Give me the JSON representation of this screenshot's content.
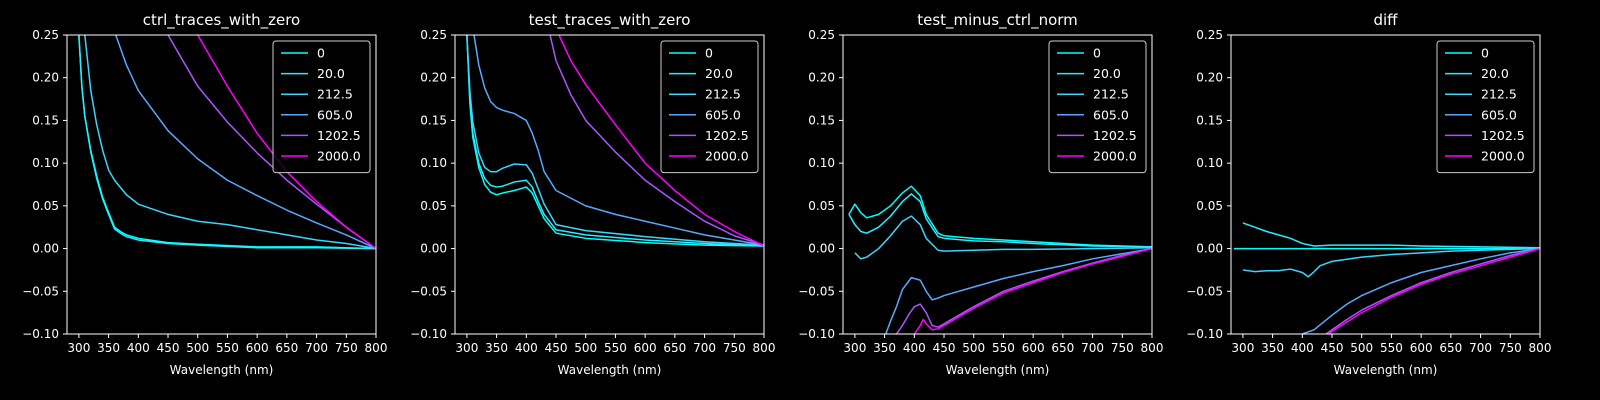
{
  "chart_data": [
    {
      "type": "line",
      "title": "ctrl_traces_with_zero",
      "xlabel": "Wavelength (nm)",
      "ylabel": "",
      "xlim": [
        280,
        800
      ],
      "ylim": [
        -0.1,
        0.25
      ],
      "xticks": [
        300,
        350,
        400,
        450,
        500,
        550,
        600,
        650,
        700,
        750,
        800
      ],
      "yticks": [
        -0.1,
        -0.05,
        0.0,
        0.05,
        0.1,
        0.15,
        0.2,
        0.25
      ],
      "legend": "top-right",
      "grid": false,
      "series": [
        {
          "name": "0",
          "color": "#00ffff",
          "x": [
            300,
            305,
            310,
            320,
            330,
            340,
            350,
            360,
            370,
            380,
            400,
            450,
            500,
            600,
            700,
            800
          ],
          "y": [
            0.25,
            0.19,
            0.155,
            0.115,
            0.085,
            0.06,
            0.042,
            0.025,
            0.02,
            0.016,
            0.012,
            0.007,
            0.005,
            0.002,
            0.002,
            0.0
          ]
        },
        {
          "name": "20.0",
          "color": "#22f0ff",
          "x": [
            300,
            305,
            310,
            320,
            330,
            340,
            350,
            360,
            370,
            380,
            400,
            450,
            500,
            600,
            700,
            800
          ],
          "y": [
            0.25,
            0.19,
            0.155,
            0.113,
            0.082,
            0.058,
            0.04,
            0.023,
            0.018,
            0.014,
            0.01,
            0.006,
            0.004,
            0.001,
            0.001,
            0.0
          ]
        },
        {
          "name": "212.5",
          "color": "#38d6ff",
          "x": [
            310,
            320,
            330,
            340,
            350,
            360,
            380,
            400,
            450,
            500,
            550,
            600,
            650,
            700,
            750,
            800
          ],
          "y": [
            0.25,
            0.185,
            0.145,
            0.115,
            0.092,
            0.08,
            0.063,
            0.052,
            0.04,
            0.032,
            0.028,
            0.022,
            0.016,
            0.01,
            0.006,
            0.0
          ]
        },
        {
          "name": "605.0",
          "color": "#55aaff",
          "x": [
            362,
            380,
            400,
            450,
            500,
            550,
            600,
            650,
            700,
            750,
            800
          ],
          "y": [
            0.25,
            0.215,
            0.185,
            0.138,
            0.105,
            0.08,
            0.062,
            0.045,
            0.03,
            0.016,
            0.0
          ]
        },
        {
          "name": "1202.5",
          "color": "#aa55ff",
          "x": [
            450,
            500,
            550,
            600,
            650,
            700,
            750,
            800
          ],
          "y": [
            0.25,
            0.19,
            0.148,
            0.112,
            0.08,
            0.052,
            0.025,
            0.0
          ]
        },
        {
          "name": "2000.0",
          "color": "#ff00ff",
          "x": [
            500,
            550,
            600,
            650,
            700,
            750,
            800
          ],
          "y": [
            0.25,
            0.19,
            0.135,
            0.09,
            0.055,
            0.025,
            0.0
          ]
        }
      ]
    },
    {
      "type": "line",
      "title": "test_traces_with_zero",
      "xlabel": "Wavelength (nm)",
      "ylabel": "",
      "xlim": [
        280,
        800
      ],
      "ylim": [
        -0.1,
        0.25
      ],
      "xticks": [
        300,
        350,
        400,
        450,
        500,
        550,
        600,
        650,
        700,
        750,
        800
      ],
      "yticks": [
        -0.1,
        -0.05,
        0.0,
        0.05,
        0.1,
        0.15,
        0.2,
        0.25
      ],
      "legend": "top-right",
      "grid": false,
      "series": [
        {
          "name": "0",
          "color": "#00ffff",
          "x": [
            300,
            305,
            310,
            320,
            330,
            340,
            350,
            360,
            380,
            400,
            410,
            420,
            430,
            450,
            500,
            600,
            700,
            800
          ],
          "y": [
            0.25,
            0.17,
            0.13,
            0.095,
            0.075,
            0.066,
            0.063,
            0.065,
            0.068,
            0.072,
            0.065,
            0.05,
            0.035,
            0.018,
            0.012,
            0.007,
            0.004,
            0.003
          ]
        },
        {
          "name": "20.0",
          "color": "#22f0ff",
          "x": [
            300,
            305,
            310,
            320,
            330,
            340,
            350,
            360,
            380,
            400,
            410,
            420,
            430,
            450,
            500,
            600,
            700,
            800
          ],
          "y": [
            0.25,
            0.175,
            0.135,
            0.1,
            0.082,
            0.074,
            0.072,
            0.073,
            0.078,
            0.08,
            0.072,
            0.055,
            0.04,
            0.022,
            0.016,
            0.01,
            0.006,
            0.003
          ]
        },
        {
          "name": "212.5",
          "color": "#38d6ff",
          "x": [
            300,
            305,
            310,
            320,
            330,
            340,
            350,
            360,
            380,
            400,
            410,
            420,
            430,
            450,
            500,
            600,
            700,
            800
          ],
          "y": [
            0.25,
            0.185,
            0.148,
            0.112,
            0.095,
            0.09,
            0.09,
            0.094,
            0.099,
            0.098,
            0.088,
            0.07,
            0.052,
            0.028,
            0.021,
            0.014,
            0.008,
            0.004
          ]
        },
        {
          "name": "605.0",
          "color": "#55aaff",
          "x": [
            312,
            320,
            330,
            340,
            350,
            360,
            380,
            400,
            410,
            420,
            430,
            450,
            500,
            550,
            600,
            650,
            700,
            750,
            800
          ],
          "y": [
            0.25,
            0.215,
            0.188,
            0.172,
            0.165,
            0.162,
            0.158,
            0.15,
            0.135,
            0.115,
            0.09,
            0.068,
            0.05,
            0.04,
            0.032,
            0.024,
            0.016,
            0.01,
            0.004
          ]
        },
        {
          "name": "1202.5",
          "color": "#aa55ff",
          "x": [
            440,
            450,
            475,
            500,
            550,
            600,
            650,
            700,
            750,
            800
          ],
          "y": [
            0.25,
            0.22,
            0.18,
            0.15,
            0.113,
            0.08,
            0.055,
            0.032,
            0.015,
            0.004
          ]
        },
        {
          "name": "2000.0",
          "color": "#ff00ff",
          "x": [
            455,
            475,
            500,
            550,
            600,
            650,
            700,
            750,
            800
          ],
          "y": [
            0.25,
            0.22,
            0.192,
            0.145,
            0.1,
            0.068,
            0.04,
            0.02,
            0.003
          ]
        }
      ]
    },
    {
      "type": "line",
      "title": "test_minus_ctrl_norm",
      "xlabel": "Wavelength (nm)",
      "ylabel": "",
      "xlim": [
        280,
        800
      ],
      "ylim": [
        -0.1,
        0.25
      ],
      "xticks": [
        300,
        350,
        400,
        450,
        500,
        550,
        600,
        650,
        700,
        750,
        800
      ],
      "yticks": [
        -0.1,
        -0.05,
        0.0,
        0.05,
        0.1,
        0.15,
        0.2,
        0.25
      ],
      "legend": "top-right",
      "grid": false,
      "series": [
        {
          "name": "0",
          "color": "#00ffff",
          "x": [
            290,
            300,
            310,
            320,
            340,
            360,
            380,
            395,
            410,
            420,
            440,
            450,
            500,
            550,
            600,
            700,
            800
          ],
          "y": [
            0.04,
            0.052,
            0.042,
            0.036,
            0.04,
            0.05,
            0.065,
            0.073,
            0.062,
            0.04,
            0.018,
            0.015,
            0.012,
            0.01,
            0.008,
            0.004,
            0.002
          ]
        },
        {
          "name": "20.0",
          "color": "#22f0ff",
          "x": [
            290,
            300,
            310,
            320,
            340,
            360,
            380,
            395,
            410,
            420,
            440,
            450,
            500,
            550,
            600,
            700,
            800
          ],
          "y": [
            0.04,
            0.028,
            0.02,
            0.018,
            0.025,
            0.038,
            0.055,
            0.064,
            0.055,
            0.035,
            0.014,
            0.012,
            0.009,
            0.008,
            0.006,
            0.003,
            0.002
          ]
        },
        {
          "name": "212.5",
          "color": "#38d6ff",
          "x": [
            300,
            310,
            320,
            340,
            360,
            380,
            395,
            410,
            420,
            440,
            450,
            500,
            550,
            600,
            700,
            800
          ],
          "y": [
            -0.005,
            -0.012,
            -0.01,
            0.0,
            0.015,
            0.032,
            0.038,
            0.028,
            0.012,
            -0.002,
            -0.003,
            -0.002,
            -0.001,
            -0.001,
            0.0,
            0.001
          ]
        },
        {
          "name": "605.0",
          "color": "#55aaff",
          "x": [
            352,
            360,
            370,
            380,
            395,
            410,
            420,
            430,
            440,
            450,
            500,
            550,
            600,
            650,
            700,
            750,
            800
          ],
          "y": [
            -0.1,
            -0.085,
            -0.068,
            -0.048,
            -0.034,
            -0.037,
            -0.05,
            -0.06,
            -0.058,
            -0.055,
            -0.045,
            -0.035,
            -0.027,
            -0.02,
            -0.012,
            -0.006,
            0.0
          ]
        },
        {
          "name": "1202.5",
          "color": "#aa55ff",
          "x": [
            370,
            380,
            390,
            400,
            410,
            420,
            430,
            440,
            450,
            475,
            500,
            550,
            600,
            650,
            700,
            750,
            800
          ],
          "y": [
            -0.1,
            -0.09,
            -0.078,
            -0.068,
            -0.065,
            -0.075,
            -0.09,
            -0.092,
            -0.088,
            -0.078,
            -0.068,
            -0.05,
            -0.038,
            -0.027,
            -0.017,
            -0.008,
            0.0
          ]
        },
        {
          "name": "2000.0",
          "color": "#ff00ff",
          "x": [
            400,
            410,
            415,
            420,
            430,
            440,
            450,
            475,
            500,
            550,
            600,
            650,
            700,
            750,
            800
          ],
          "y": [
            -0.1,
            -0.09,
            -0.083,
            -0.088,
            -0.095,
            -0.094,
            -0.09,
            -0.08,
            -0.07,
            -0.052,
            -0.04,
            -0.028,
            -0.018,
            -0.009,
            0.0
          ]
        }
      ]
    },
    {
      "type": "line",
      "title": "diff",
      "xlabel": "Wavelength (nm)",
      "ylabel": "",
      "xlim": [
        280,
        800
      ],
      "ylim": [
        -0.1,
        0.25
      ],
      "xticks": [
        300,
        350,
        400,
        450,
        500,
        550,
        600,
        650,
        700,
        750,
        800
      ],
      "yticks": [
        -0.1,
        -0.05,
        0.0,
        0.05,
        0.1,
        0.15,
        0.2,
        0.25
      ],
      "legend": "top-right",
      "grid": false,
      "series": [
        {
          "name": "0",
          "color": "#00ffff",
          "x": [
            285,
            800
          ],
          "y": [
            0.0,
            0.0
          ]
        },
        {
          "name": "20.0",
          "color": "#22f0ff",
          "x": [
            300,
            320,
            340,
            360,
            380,
            400,
            420,
            450,
            500,
            550,
            600,
            700,
            800
          ],
          "y": [
            0.03,
            0.025,
            0.02,
            0.016,
            0.012,
            0.006,
            0.003,
            0.004,
            0.004,
            0.004,
            0.003,
            0.002,
            0.001
          ]
        },
        {
          "name": "212.5",
          "color": "#38d6ff",
          "x": [
            300,
            320,
            340,
            360,
            380,
            400,
            410,
            420,
            430,
            450,
            500,
            550,
            600,
            650,
            700,
            750,
            800
          ],
          "y": [
            -0.025,
            -0.027,
            -0.026,
            -0.026,
            -0.024,
            -0.028,
            -0.033,
            -0.027,
            -0.02,
            -0.015,
            -0.01,
            -0.007,
            -0.005,
            -0.003,
            -0.002,
            -0.001,
            0.0
          ]
        },
        {
          "name": "605.0",
          "color": "#55aaff",
          "x": [
            400,
            420,
            450,
            475,
            500,
            550,
            600,
            650,
            700,
            750,
            800
          ],
          "y": [
            -0.1,
            -0.095,
            -0.078,
            -0.065,
            -0.055,
            -0.04,
            -0.028,
            -0.02,
            -0.012,
            -0.005,
            0.0
          ]
        },
        {
          "name": "1202.5",
          "color": "#aa55ff",
          "x": [
            440,
            450,
            475,
            500,
            550,
            600,
            650,
            700,
            750,
            800
          ],
          "y": [
            -0.1,
            -0.095,
            -0.083,
            -0.072,
            -0.055,
            -0.04,
            -0.028,
            -0.018,
            -0.008,
            0.0
          ]
        },
        {
          "name": "2000.0",
          "color": "#ff00ff",
          "x": [
            445,
            450,
            475,
            500,
            550,
            600,
            650,
            700,
            750,
            800
          ],
          "y": [
            -0.1,
            -0.097,
            -0.086,
            -0.075,
            -0.057,
            -0.042,
            -0.03,
            -0.02,
            -0.01,
            0.0
          ]
        }
      ]
    }
  ]
}
